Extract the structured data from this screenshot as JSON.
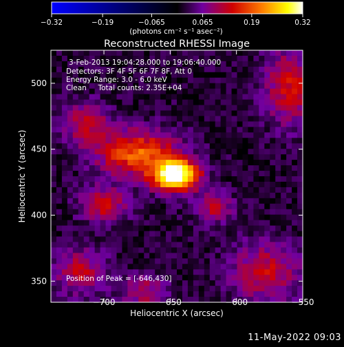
{
  "chart_data": {
    "type": "heatmap",
    "title": "Reconstructed RHESSI Image",
    "xlabel": "Heliocentric X (arcsec)",
    "ylabel": "Heliocentric Y (arcsec)",
    "xlim": [
      -740,
      -550
    ],
    "ylim": [
      334,
      525
    ],
    "x_ticks": [
      -700,
      -650,
      -600,
      -550
    ],
    "x_tick_labels": [
      "−700",
      "−650",
      "−600",
      "−550"
    ],
    "y_ticks": [
      350,
      400,
      450,
      500
    ],
    "y_tick_labels": [
      "350",
      "400",
      "450",
      "500"
    ],
    "colorbar": {
      "range": [
        -0.32,
        0.32
      ],
      "ticks": [
        -0.32,
        -0.19,
        -0.065,
        0.065,
        0.19,
        0.32
      ],
      "tick_labels": [
        "−0.32",
        "−0.19",
        "−0.065",
        "0.065",
        "0.19",
        "0.32"
      ],
      "unit_label": "(photons cm⁻² s⁻¹ asec⁻²)",
      "colormap": [
        "#0000ff",
        "#000000",
        "#7000a0",
        "#d00000",
        "#ff8000",
        "#ffff00",
        "#ffffff"
      ]
    },
    "annotations": [
      "3-Feb-2013 19:04:28.000 to 19:06:40.000",
      "Detectors: 3F 4F 5F 6F 7F 8F, Att 0",
      "Energy Range: 3.0 - 6.0 keV",
      "Clean     Total counts: 2.35E+04"
    ],
    "peak_label": "Position of Peak = [-646,430]",
    "peak": [
      -646,
      430
    ],
    "sources": [
      {
        "x": -646,
        "y": 430,
        "amp": 0.32,
        "sx": 12,
        "sy": 8
      },
      {
        "x": -675,
        "y": 447,
        "amp": 0.17,
        "sx": 22,
        "sy": 12
      },
      {
        "x": -700,
        "y": 408,
        "amp": 0.12,
        "sx": 12,
        "sy": 9
      },
      {
        "x": -714,
        "y": 470,
        "amp": 0.1,
        "sx": 13,
        "sy": 11
      },
      {
        "x": -617,
        "y": 406,
        "amp": 0.1,
        "sx": 10,
        "sy": 8
      },
      {
        "x": -560,
        "y": 497,
        "amp": 0.12,
        "sx": 13,
        "sy": 20
      },
      {
        "x": -578,
        "y": 357,
        "amp": 0.11,
        "sx": 18,
        "sy": 16
      },
      {
        "x": -718,
        "y": 357,
        "amp": 0.1,
        "sx": 14,
        "sy": 12
      },
      {
        "x": -670,
        "y": 342,
        "amp": 0.09,
        "sx": 12,
        "sy": 9
      }
    ]
  },
  "footer": {
    "date": "11-May-2022 09:03"
  }
}
